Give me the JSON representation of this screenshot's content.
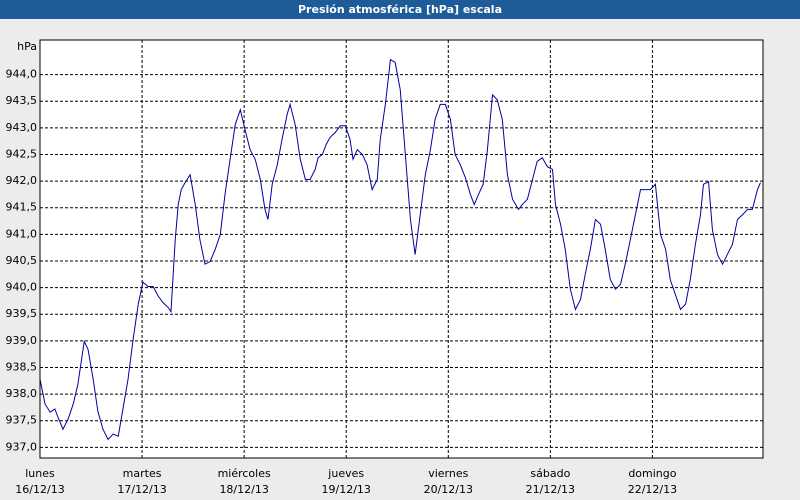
{
  "chart_data": {
    "type": "line",
    "title": "Presión atmosférica [hPa] escala",
    "y_label": "hPa",
    "xlim": [
      0,
      170
    ],
    "ylim": [
      936.8,
      944.65
    ],
    "xticks": [
      {
        "value": 0,
        "label": "lunes",
        "date": "16/12/13"
      },
      {
        "value": 24,
        "label": "martes",
        "date": "17/12/13"
      },
      {
        "value": 48,
        "label": "miércoles",
        "date": "18/12/13"
      },
      {
        "value": 72,
        "label": "jueves",
        "date": "19/12/13"
      },
      {
        "value": 96,
        "label": "viernes",
        "date": "20/12/13"
      },
      {
        "value": 120,
        "label": "sábado",
        "date": "21/12/13"
      },
      {
        "value": 144,
        "label": "domingo",
        "date": "22/12/13"
      }
    ],
    "yticks": [
      {
        "value": 937,
        "label": "937,0"
      },
      {
        "value": 937.5,
        "label": "937,5"
      },
      {
        "value": 938,
        "label": "938,0"
      },
      {
        "value": 938.5,
        "label": "938,5"
      },
      {
        "value": 939,
        "label": "939,0"
      },
      {
        "value": 939.5,
        "label": "939,5"
      },
      {
        "value": 940,
        "label": "940,0"
      },
      {
        "value": 940.5,
        "label": "940,5"
      },
      {
        "value": 941,
        "label": "941,0"
      },
      {
        "value": 941.5,
        "label": "941,5"
      },
      {
        "value": 942,
        "label": "942,0"
      },
      {
        "value": 942.5,
        "label": "942,5"
      },
      {
        "value": 943,
        "label": "943,0"
      },
      {
        "value": 943.5,
        "label": "943,5"
      },
      {
        "value": 944,
        "label": "944,0"
      }
    ],
    "grid": true,
    "color": "#0000a0",
    "x": [
      0,
      1.2,
      2.4,
      3.5,
      4.2,
      5.4,
      6.6,
      7.8,
      8.9,
      10.4,
      11.3,
      12.5,
      13.6,
      14.8,
      16,
      17.2,
      18.4,
      19.5,
      20.7,
      21.9,
      23.1,
      24.2,
      25.4,
      26.6,
      27.8,
      28.9,
      30.1,
      30.8,
      31.8,
      32.5,
      33.2,
      34.1,
      35.3,
      36.5,
      37.6,
      38.8,
      40,
      41.2,
      42.4,
      43.5,
      44.7,
      45.9,
      47.1,
      48.2,
      49.4,
      50.6,
      51.8,
      52.9,
      53.6,
      54.6,
      55.8,
      56.9,
      58.1,
      58.8,
      60,
      61.2,
      62.4,
      63.5,
      64.7,
      65.4,
      66.4,
      67.3,
      68.2,
      69.4,
      70.6,
      71.8,
      72.9,
      73.6,
      74.6,
      75.8,
      76.9,
      78.1,
      79.3,
      80,
      81.2,
      82.4,
      83.5,
      84.7,
      85.9,
      87.1,
      88.2,
      89.4,
      90.6,
      91.8,
      92.9,
      94.1,
      95.3,
      96.5,
      97.6,
      98.8,
      100,
      101.2,
      102.1,
      103.1,
      104.2,
      105.2,
      106.4,
      107.5,
      108.7,
      109.9,
      111.1,
      112.5,
      113.4,
      114.6,
      115.8,
      116.9,
      118.1,
      119.3,
      120.5,
      121.2,
      122.4,
      123.5,
      124.7,
      125.9,
      127.1,
      128.2,
      129.4,
      130.6,
      131.8,
      132.9,
      134.1,
      135.3,
      136.5,
      137.6,
      138.8,
      140,
      141.2,
      142.4,
      143.5,
      144.7,
      145.9,
      147.1,
      148.2,
      149.4,
      150.6,
      151.8,
      152.9,
      154.1,
      155.3,
      156,
      157.2,
      158.1,
      159.3,
      160.5,
      161.6,
      162.8,
      164,
      165.2,
      166.4,
      167.5,
      168.7,
      169.4
    ],
    "values": [
      938.28,
      937.81,
      937.66,
      937.72,
      937.57,
      937.34,
      937.53,
      937.81,
      938.18,
      938.99,
      938.84,
      938.28,
      937.68,
      937.34,
      937.15,
      937.25,
      937.21,
      937.72,
      938.28,
      939.03,
      939.69,
      940.1,
      940.02,
      940.02,
      939.84,
      939.72,
      939.63,
      939.55,
      940.9,
      941.56,
      941.84,
      941.97,
      942.12,
      941.56,
      940.9,
      940.44,
      940.49,
      940.72,
      941,
      941.75,
      942.41,
      943.06,
      943.34,
      942.97,
      942.59,
      942.41,
      942.03,
      941.47,
      941.28,
      941.94,
      942.31,
      942.78,
      943.25,
      943.44,
      943.06,
      942.41,
      942.03,
      942.03,
      942.22,
      942.44,
      942.5,
      942.69,
      942.82,
      942.91,
      943.04,
      943.04,
      942.78,
      942.41,
      942.59,
      942.5,
      942.31,
      941.84,
      942.03,
      942.78,
      943.44,
      944.28,
      944.23,
      943.72,
      942.5,
      941.28,
      940.62,
      941.37,
      942.12,
      942.59,
      943.16,
      943.44,
      943.44,
      943.16,
      942.5,
      942.31,
      942.07,
      941.75,
      941.56,
      941.75,
      941.94,
      942.59,
      943.62,
      943.53,
      943.16,
      942.12,
      941.66,
      941.47,
      941.56,
      941.66,
      942.03,
      942.37,
      942.44,
      942.27,
      942.22,
      941.56,
      941.19,
      940.72,
      939.97,
      939.59,
      939.78,
      940.25,
      940.72,
      941.28,
      941.19,
      940.72,
      940.15,
      939.97,
      940.06,
      940.44,
      940.9,
      941.37,
      941.84,
      941.84,
      941.84,
      941.94,
      941,
      940.72,
      940.15,
      939.87,
      939.59,
      939.69,
      940.15,
      940.81,
      941.37,
      941.94,
      941.99,
      941.09,
      940.62,
      940.44,
      940.62,
      940.81,
      941.28,
      941.37,
      941.47,
      941.47,
      941.84,
      941.97
    ]
  }
}
